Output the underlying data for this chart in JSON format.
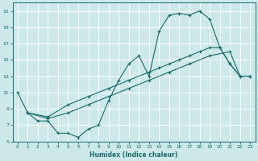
{
  "xlabel": "Humidex (Indice chaleur)",
  "bg_color": "#cde8e8",
  "line_color": "#1a6b6b",
  "grid_color": "#ffffff",
  "xlim": [
    -0.5,
    23.5
  ],
  "ylim": [
    5,
    22
  ],
  "yticks": [
    5,
    7,
    9,
    11,
    13,
    15,
    17,
    19,
    21
  ],
  "xticks": [
    0,
    1,
    2,
    3,
    4,
    5,
    6,
    7,
    8,
    9,
    10,
    11,
    12,
    13,
    14,
    15,
    16,
    17,
    18,
    19,
    20,
    21,
    22,
    23
  ],
  "line1_x": [
    0,
    1,
    2,
    3,
    4,
    5,
    6,
    7,
    8,
    9,
    10,
    11,
    12,
    13,
    14,
    15,
    16,
    17,
    18,
    19,
    20,
    21,
    22,
    23
  ],
  "line1_y": [
    11.0,
    8.5,
    7.5,
    7.5,
    6.0,
    6.0,
    5.5,
    6.5,
    7.0,
    10.0,
    12.5,
    14.5,
    15.5,
    13.0,
    18.5,
    20.5,
    20.7,
    20.5,
    21.0,
    20.0,
    16.5,
    14.5,
    13.0,
    13.0
  ],
  "line2_x": [
    1,
    3,
    5,
    7,
    9,
    11,
    13,
    14,
    15,
    16,
    17,
    18,
    19,
    20,
    21,
    22,
    23
  ],
  "line2_y": [
    8.5,
    8.0,
    9.5,
    10.5,
    11.5,
    12.5,
    13.5,
    14.0,
    14.5,
    15.0,
    15.5,
    16.0,
    16.5,
    16.5,
    14.5,
    13.0,
    13.0
  ],
  "line3_x": [
    1,
    3,
    5,
    7,
    9,
    11,
    13,
    15,
    17,
    19,
    21,
    22,
    23
  ],
  "line3_y": [
    8.5,
    7.8,
    8.5,
    9.5,
    10.5,
    11.5,
    12.5,
    13.5,
    14.5,
    15.5,
    16.0,
    13.0,
    13.0
  ]
}
